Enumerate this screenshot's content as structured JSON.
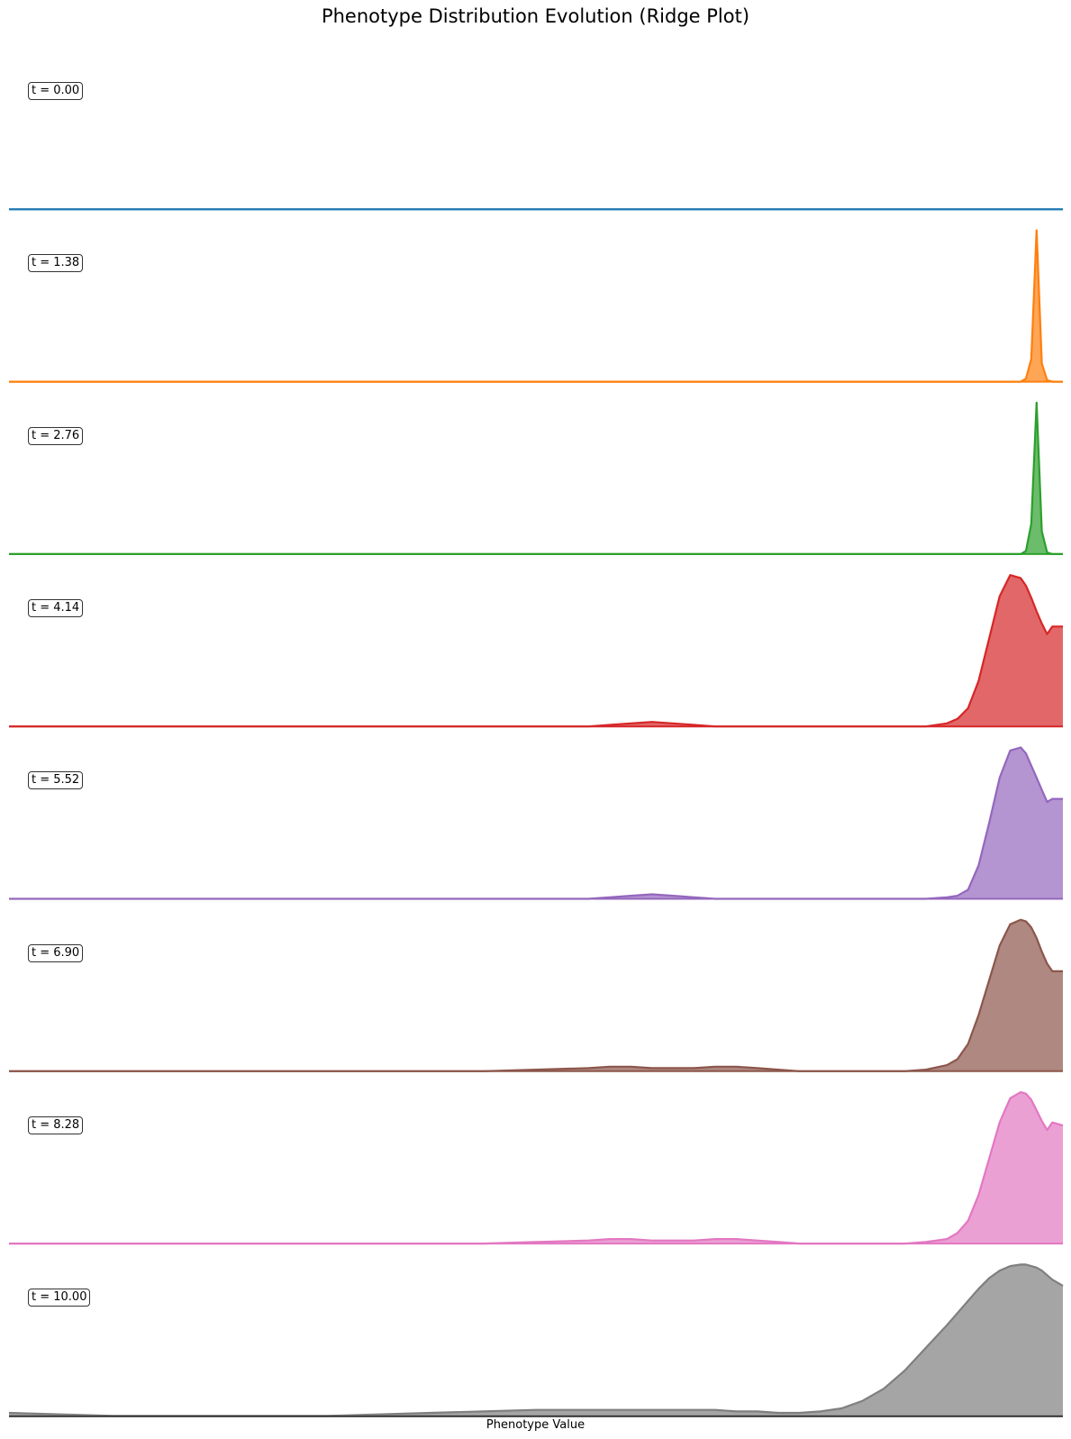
{
  "chart_data": {
    "type": "area",
    "title": "Phenotype Distribution Evolution (Ridge Plot)",
    "xlabel": "Phenotype Value",
    "ylabel": "",
    "xlim": [
      0,
      1
    ],
    "grid": false,
    "x": [
      0.0,
      0.05,
      0.1,
      0.15,
      0.2,
      0.25,
      0.3,
      0.35,
      0.4,
      0.45,
      0.5,
      0.55,
      0.57,
      0.59,
      0.61,
      0.63,
      0.65,
      0.67,
      0.69,
      0.71,
      0.73,
      0.75,
      0.77,
      0.79,
      0.81,
      0.83,
      0.85,
      0.87,
      0.89,
      0.9,
      0.91,
      0.92,
      0.93,
      0.94,
      0.95,
      0.96,
      0.965,
      0.97,
      0.975,
      0.98,
      0.985,
      0.99,
      1.0
    ],
    "series": [
      {
        "name": "t = 0.00",
        "color": "#1f77b4",
        "values": [
          0,
          0,
          0,
          0,
          0,
          0,
          0,
          0,
          0,
          0,
          0,
          0,
          0,
          0,
          0,
          0,
          0,
          0,
          0,
          0,
          0,
          0,
          0,
          0,
          0,
          0,
          0,
          0,
          0,
          0,
          0,
          0,
          0,
          0,
          0,
          0,
          0,
          0,
          0,
          0,
          0,
          0,
          0
        ]
      },
      {
        "name": "t = 1.38",
        "color": "#ff7f0e",
        "values": [
          0,
          0,
          0,
          0,
          0,
          0,
          0,
          0,
          0,
          0,
          0,
          0,
          0,
          0,
          0,
          0,
          0,
          0,
          0,
          0,
          0,
          0,
          0,
          0,
          0,
          0,
          0,
          0,
          0,
          0,
          0,
          0,
          0,
          0,
          0,
          0,
          0.02,
          0.15,
          1.0,
          0.12,
          0.01,
          0,
          0
        ]
      },
      {
        "name": "t = 2.76",
        "color": "#2ca02c",
        "values": [
          0,
          0,
          0,
          0,
          0,
          0,
          0,
          0,
          0,
          0,
          0,
          0,
          0,
          0,
          0,
          0,
          0,
          0,
          0,
          0,
          0,
          0,
          0,
          0,
          0,
          0,
          0,
          0,
          0,
          0,
          0,
          0,
          0,
          0,
          0,
          0,
          0.02,
          0.2,
          1.0,
          0.15,
          0.01,
          0,
          0
        ]
      },
      {
        "name": "t = 4.14",
        "color": "#d62728",
        "values": [
          0,
          0,
          0,
          0,
          0,
          0,
          0,
          0,
          0,
          0,
          0,
          0,
          0.01,
          0.02,
          0.03,
          0.02,
          0.01,
          0,
          0,
          0,
          0,
          0,
          0,
          0,
          0,
          0,
          0,
          0,
          0.02,
          0.05,
          0.12,
          0.3,
          0.58,
          0.86,
          1.0,
          0.98,
          0.93,
          0.85,
          0.76,
          0.68,
          0.61,
          0.66,
          0.66
        ]
      },
      {
        "name": "t = 5.52",
        "color": "#9467bd",
        "values": [
          0,
          0,
          0,
          0,
          0,
          0,
          0,
          0,
          0,
          0,
          0,
          0,
          0.01,
          0.02,
          0.03,
          0.02,
          0.01,
          0,
          0,
          0,
          0,
          0,
          0,
          0,
          0,
          0,
          0,
          0,
          0.01,
          0.02,
          0.06,
          0.22,
          0.5,
          0.8,
          0.98,
          1.0,
          0.96,
          0.88,
          0.8,
          0.72,
          0.64,
          0.66,
          0.66
        ]
      },
      {
        "name": "t = 6.90",
        "color": "#8c564b",
        "values": [
          0,
          0,
          0,
          0,
          0,
          0,
          0,
          0,
          0,
          0,
          0.01,
          0.02,
          0.03,
          0.03,
          0.02,
          0.02,
          0.02,
          0.03,
          0.03,
          0.02,
          0.01,
          0,
          0,
          0,
          0,
          0,
          0,
          0.01,
          0.04,
          0.08,
          0.18,
          0.37,
          0.6,
          0.83,
          0.97,
          1.0,
          0.99,
          0.95,
          0.88,
          0.79,
          0.71,
          0.66,
          0.66
        ]
      },
      {
        "name": "t = 8.28",
        "color": "#e377c2",
        "values": [
          0,
          0,
          0,
          0,
          0,
          0,
          0,
          0,
          0,
          0,
          0.01,
          0.02,
          0.03,
          0.03,
          0.02,
          0.02,
          0.02,
          0.03,
          0.03,
          0.02,
          0.01,
          0,
          0,
          0,
          0,
          0,
          0,
          0.01,
          0.03,
          0.07,
          0.15,
          0.32,
          0.56,
          0.8,
          0.96,
          1.0,
          0.99,
          0.95,
          0.88,
          0.81,
          0.75,
          0.8,
          0.78
        ]
      },
      {
        "name": "t = 10.00",
        "color": "#7f7f7f",
        "values": [
          0.02,
          0.01,
          0.0,
          0.0,
          0.0,
          0.0,
          0.0,
          0.01,
          0.02,
          0.03,
          0.04,
          0.04,
          0.04,
          0.04,
          0.04,
          0.04,
          0.04,
          0.04,
          0.03,
          0.03,
          0.02,
          0.02,
          0.03,
          0.05,
          0.1,
          0.18,
          0.3,
          0.45,
          0.6,
          0.68,
          0.76,
          0.84,
          0.91,
          0.96,
          0.99,
          1.0,
          1.0,
          0.99,
          0.98,
          0.96,
          0.93,
          0.9,
          0.86
        ]
      }
    ]
  }
}
